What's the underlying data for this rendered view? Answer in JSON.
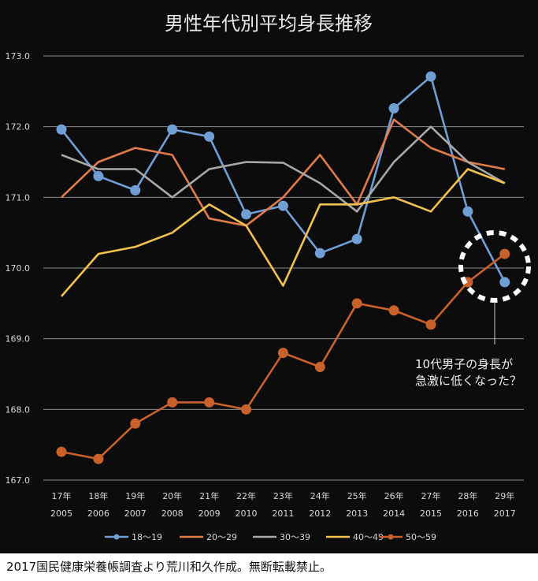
{
  "chart_data": {
    "type": "line",
    "title": "男性年代別平均身長推移",
    "xlabel": "",
    "ylabel": "",
    "ylim": [
      167.0,
      173.0
    ],
    "y_ticks": [
      "167.0",
      "168.0",
      "169.0",
      "170.0",
      "171.0",
      "172.0",
      "173.0"
    ],
    "categories_heisei": [
      "17年",
      "18年",
      "19年",
      "20年",
      "21年",
      "22年",
      "23年",
      "24年",
      "25年",
      "26年",
      "27年",
      "28年",
      "29年"
    ],
    "categories_year": [
      "2005",
      "2006",
      "2007",
      "2008",
      "2009",
      "2010",
      "2011",
      "2012",
      "2013",
      "2014",
      "2015",
      "2016",
      "2017"
    ],
    "grid": true,
    "legend_position": "bottom",
    "series": [
      {
        "name": "18〜19",
        "color": "#6f9fd4",
        "marker": true,
        "values": [
          171.96,
          171.3,
          171.1,
          171.96,
          171.86,
          170.76,
          170.88,
          170.21,
          170.41,
          172.26,
          172.71,
          170.8,
          169.8
        ]
      },
      {
        "name": "20〜29",
        "color": "#e07b4a",
        "marker": false,
        "values": [
          171.0,
          171.5,
          171.7,
          171.6,
          170.7,
          170.6,
          171.0,
          171.6,
          170.9,
          172.1,
          171.7,
          171.5,
          171.4
        ]
      },
      {
        "name": "30〜39",
        "color": "#a8a8a8",
        "marker": false,
        "values": [
          171.6,
          171.4,
          171.4,
          171.0,
          171.4,
          171.5,
          171.49,
          171.2,
          170.8,
          171.5,
          172.0,
          171.5,
          171.2
        ]
      },
      {
        "name": "40〜49",
        "color": "#f2c14e",
        "marker": false,
        "values": [
          169.6,
          170.2,
          170.3,
          170.5,
          170.9,
          170.6,
          169.75,
          170.9,
          170.9,
          171.0,
          170.8,
          171.4,
          171.2
        ]
      },
      {
        "name": "50〜59",
        "color": "#c8612a",
        "marker": true,
        "values": [
          167.4,
          167.3,
          167.8,
          168.1,
          168.1,
          168.0,
          168.8,
          168.6,
          169.5,
          169.4,
          169.2,
          169.8,
          170.2
        ]
      }
    ],
    "annotation": {
      "line1": "10代男子の身長が",
      "line2": "急激に低くなった？"
    }
  },
  "footer": {
    "source": "2017国民健康栄養帳調査より荒川和久作成。無断転載禁止。"
  }
}
